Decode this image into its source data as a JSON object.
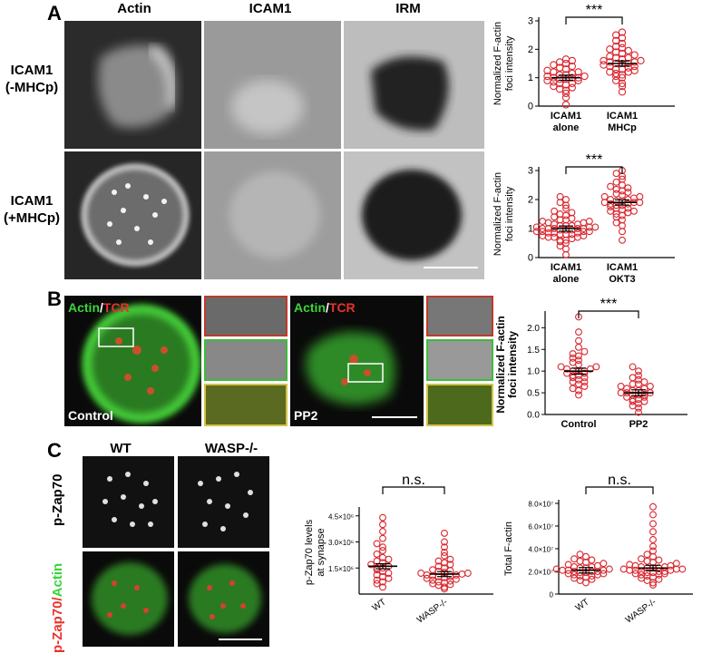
{
  "panel_a": {
    "letter": "A",
    "columns": [
      "Actin",
      "ICAM1",
      "IRM"
    ],
    "rows": [
      {
        "line1": "ICAM1",
        "line2": "(-MHCp)"
      },
      {
        "line1": "ICAM1",
        "line2": "(+MHCp)"
      }
    ]
  },
  "panel_b": {
    "letter": "B",
    "overlay_actin": "Actin",
    "overlay_slash": "/",
    "overlay_tcr": "TCR",
    "label_control": "Control",
    "label_pp2": "PP2"
  },
  "panel_c": {
    "letter": "C",
    "col_wt": "WT",
    "col_wasp": "WASP-/-",
    "row1": "p-Zap70",
    "row2_red": "p-Zap70/",
    "row2_green": "Actin"
  },
  "colors": {
    "dots": "#d9262e",
    "actin_green": "#3ad53a",
    "tcr_red": "#e8322c"
  },
  "chart_data": [
    {
      "type": "scatter",
      "ylabel": "Normalized F-actin foci intensity",
      "categories": [
        [
          "ICAM1",
          "alone"
        ],
        [
          "ICAM1",
          "MHCp"
        ]
      ],
      "ylim": [
        0,
        3
      ],
      "yticks": [
        0,
        1,
        2,
        3
      ],
      "significance": "***",
      "series": [
        {
          "category": "ICAM1 alone",
          "mean": 1.0,
          "values": [
            0.05,
            0.3,
            0.45,
            0.55,
            0.6,
            0.65,
            0.7,
            0.75,
            0.8,
            0.8,
            0.85,
            0.9,
            0.9,
            0.95,
            0.95,
            1.0,
            1.0,
            1.0,
            1.05,
            1.05,
            1.1,
            1.1,
            1.15,
            1.2,
            1.2,
            1.25,
            1.3,
            1.35,
            1.4,
            1.45,
            1.5,
            1.55,
            1.6,
            1.65
          ]
        },
        {
          "category": "ICAM1 MHCp",
          "mean": 1.5,
          "values": [
            0.5,
            0.7,
            0.8,
            0.9,
            1.0,
            1.05,
            1.1,
            1.15,
            1.2,
            1.2,
            1.25,
            1.3,
            1.3,
            1.35,
            1.4,
            1.4,
            1.45,
            1.5,
            1.5,
            1.5,
            1.55,
            1.55,
            1.6,
            1.6,
            1.65,
            1.7,
            1.7,
            1.75,
            1.8,
            1.85,
            1.9,
            1.95,
            2.0,
            2.05,
            2.1,
            2.2,
            2.3,
            2.4,
            2.5,
            2.6
          ]
        }
      ]
    },
    {
      "type": "scatter",
      "ylabel": "Normalized F-actin foci intensity",
      "categories": [
        [
          "ICAM1",
          "alone"
        ],
        [
          "ICAM1",
          "OKT3"
        ]
      ],
      "ylim": [
        0,
        3
      ],
      "yticks": [
        0,
        1,
        2,
        3
      ],
      "significance": "***",
      "series": [
        {
          "category": "ICAM1 alone",
          "mean": 1.0,
          "values": [
            0.1,
            0.3,
            0.4,
            0.5,
            0.55,
            0.6,
            0.6,
            0.65,
            0.7,
            0.7,
            0.7,
            0.75,
            0.75,
            0.8,
            0.8,
            0.8,
            0.85,
            0.85,
            0.85,
            0.9,
            0.9,
            0.9,
            0.9,
            0.95,
            0.95,
            0.95,
            1.0,
            1.0,
            1.0,
            1.0,
            1.0,
            1.05,
            1.05,
            1.05,
            1.1,
            1.1,
            1.1,
            1.15,
            1.15,
            1.2,
            1.2,
            1.25,
            1.25,
            1.3,
            1.3,
            1.35,
            1.4,
            1.45,
            1.5,
            1.55,
            1.6,
            1.7,
            1.8,
            1.9,
            2.0,
            2.1
          ]
        },
        {
          "category": "ICAM1 OKT3",
          "mean": 1.9,
          "values": [
            0.6,
            0.9,
            1.1,
            1.2,
            1.3,
            1.4,
            1.45,
            1.5,
            1.55,
            1.6,
            1.6,
            1.65,
            1.7,
            1.7,
            1.75,
            1.8,
            1.8,
            1.85,
            1.85,
            1.9,
            1.9,
            1.9,
            1.95,
            1.95,
            2.0,
            2.0,
            2.05,
            2.1,
            2.1,
            2.15,
            2.2,
            2.25,
            2.3,
            2.35,
            2.4,
            2.45,
            2.5,
            2.6,
            2.7,
            2.8,
            2.9,
            3.0
          ]
        }
      ]
    },
    {
      "type": "scatter",
      "ylabel": "Normalized F-actin foci intensity",
      "categories": [
        [
          "Control"
        ],
        [
          "PP2"
        ]
      ],
      "ylim": [
        0,
        2.3
      ],
      "yticks": [
        0.0,
        0.5,
        1.0,
        1.5,
        2.0
      ],
      "significance": "***",
      "series": [
        {
          "category": "Control",
          "mean": 1.0,
          "values": [
            0.45,
            0.55,
            0.6,
            0.65,
            0.7,
            0.75,
            0.75,
            0.8,
            0.85,
            0.85,
            0.9,
            0.9,
            0.95,
            0.95,
            1.0,
            1.0,
            1.0,
            1.05,
            1.05,
            1.1,
            1.1,
            1.15,
            1.2,
            1.25,
            1.3,
            1.35,
            1.4,
            1.45,
            1.55,
            1.7,
            1.9,
            2.25
          ]
        },
        {
          "category": "PP2",
          "mean": 0.5,
          "values": [
            0.05,
            0.15,
            0.2,
            0.25,
            0.3,
            0.3,
            0.35,
            0.35,
            0.4,
            0.4,
            0.45,
            0.45,
            0.45,
            0.5,
            0.5,
            0.5,
            0.55,
            0.55,
            0.6,
            0.6,
            0.65,
            0.65,
            0.7,
            0.7,
            0.75,
            0.8,
            0.85,
            0.9,
            1.0,
            1.1
          ]
        }
      ]
    },
    {
      "type": "scatter",
      "ylabel": "p-Zap70 levels at synapse",
      "categories": [
        [
          "WT"
        ],
        [
          "WASP-/-"
        ]
      ],
      "ylim": [
        0,
        4800000
      ],
      "yticks": [
        1500000,
        3000000,
        4500000
      ],
      "ytick_labels": [
        "1.5×10⁶",
        "3.0×10⁶",
        "4.5×10⁶"
      ],
      "significance": "n.s.",
      "series": [
        {
          "category": "WT",
          "mean": 1600000,
          "values": [
            400000,
            600000,
            700000,
            800000,
            900000,
            1000000,
            1100000,
            1200000,
            1300000,
            1400000,
            1500000,
            1500000,
            1600000,
            1700000,
            1800000,
            1900000,
            2000000,
            2100000,
            2300000,
            2500000,
            2700000,
            2900000,
            3200000,
            3600000,
            4000000,
            4400000
          ]
        },
        {
          "category": "WASP-/-",
          "mean": 1150000,
          "values": [
            300000,
            400000,
            500000,
            550000,
            600000,
            650000,
            700000,
            750000,
            800000,
            850000,
            900000,
            950000,
            1000000,
            1000000,
            1050000,
            1100000,
            1100000,
            1150000,
            1200000,
            1200000,
            1250000,
            1300000,
            1350000,
            1400000,
            1500000,
            1600000,
            1700000,
            1800000,
            1900000,
            2000000,
            2200000,
            2400000,
            2700000,
            3000000,
            3500000
          ]
        }
      ]
    },
    {
      "type": "scatter",
      "ylabel": "Total F-actin",
      "categories": [
        [
          "WT"
        ],
        [
          "WASP-/-"
        ]
      ],
      "ylim": [
        0,
        80000000
      ],
      "yticks": [
        0,
        20000000,
        40000000,
        60000000,
        80000000
      ],
      "ytick_labels": [
        "0",
        "2.0×10⁷",
        "4.0×10⁷",
        "6.0×10⁷",
        "8.0×10⁷"
      ],
      "significance": "n.s.",
      "series": [
        {
          "category": "WT",
          "mean": 21000000,
          "values": [
            10000000,
            12000000,
            13000000,
            14000000,
            15000000,
            16000000,
            16000000,
            17000000,
            17000000,
            18000000,
            18000000,
            19000000,
            19000000,
            20000000,
            20000000,
            20000000,
            21000000,
            21000000,
            21000000,
            22000000,
            22000000,
            23000000,
            23000000,
            24000000,
            24000000,
            25000000,
            26000000,
            27000000,
            28000000,
            29000000,
            30000000,
            31000000,
            33000000,
            35000000
          ]
        },
        {
          "category": "WASP-/-",
          "mean": 23000000,
          "values": [
            8000000,
            10000000,
            12000000,
            13000000,
            14000000,
            15000000,
            16000000,
            17000000,
            17000000,
            18000000,
            18000000,
            19000000,
            19000000,
            20000000,
            20000000,
            20000000,
            21000000,
            21000000,
            21000000,
            22000000,
            22000000,
            22000000,
            23000000,
            23000000,
            23000000,
            24000000,
            24000000,
            25000000,
            25000000,
            26000000,
            27000000,
            28000000,
            29000000,
            30000000,
            31000000,
            33000000,
            35000000,
            38000000,
            42000000,
            48000000,
            55000000,
            62000000,
            70000000,
            77000000
          ]
        }
      ]
    }
  ]
}
